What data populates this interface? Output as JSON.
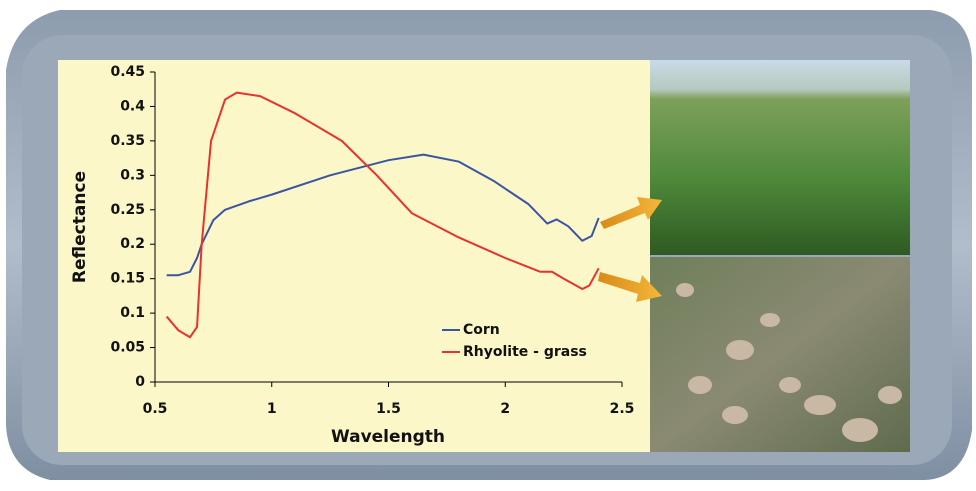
{
  "chart_data": {
    "type": "line",
    "xlabel": "Wavelength",
    "ylabel": "Reflectance",
    "xlim": [
      0.5,
      2.5
    ],
    "xticks": [
      0.5,
      1,
      1.5,
      2,
      2.5
    ],
    "ylim": [
      0,
      0.45
    ],
    "yticks": [
      0,
      0.05,
      0.1,
      0.15,
      0.2,
      0.25,
      0.3,
      0.35,
      0.4,
      0.45
    ],
    "grid": false,
    "legend": "lower right",
    "series": [
      {
        "name": "Corn",
        "color": "#3a55a4",
        "x": [
          0.55,
          0.6,
          0.65,
          0.68,
          0.7,
          0.75,
          0.8,
          0.9,
          1.0,
          1.25,
          1.5,
          1.65,
          1.8,
          1.95,
          2.1,
          2.18,
          2.22,
          2.27,
          2.33,
          2.37,
          2.4
        ],
        "values": [
          0.155,
          0.155,
          0.16,
          0.18,
          0.2,
          0.235,
          0.25,
          0.262,
          0.272,
          0.3,
          0.322,
          0.33,
          0.32,
          0.292,
          0.258,
          0.23,
          0.236,
          0.226,
          0.205,
          0.212,
          0.238
        ]
      },
      {
        "name": "Rhyolite - grass",
        "color": "#e8322d",
        "x": [
          0.55,
          0.6,
          0.65,
          0.68,
          0.7,
          0.74,
          0.8,
          0.85,
          0.95,
          1.1,
          1.3,
          1.45,
          1.6,
          1.8,
          2.0,
          2.15,
          2.2,
          2.25,
          2.33,
          2.36,
          2.4
        ],
        "values": [
          0.095,
          0.075,
          0.065,
          0.08,
          0.2,
          0.35,
          0.41,
          0.42,
          0.415,
          0.39,
          0.35,
          0.3,
          0.245,
          0.21,
          0.18,
          0.16,
          0.16,
          0.15,
          0.135,
          0.14,
          0.165
        ]
      }
    ]
  }
}
